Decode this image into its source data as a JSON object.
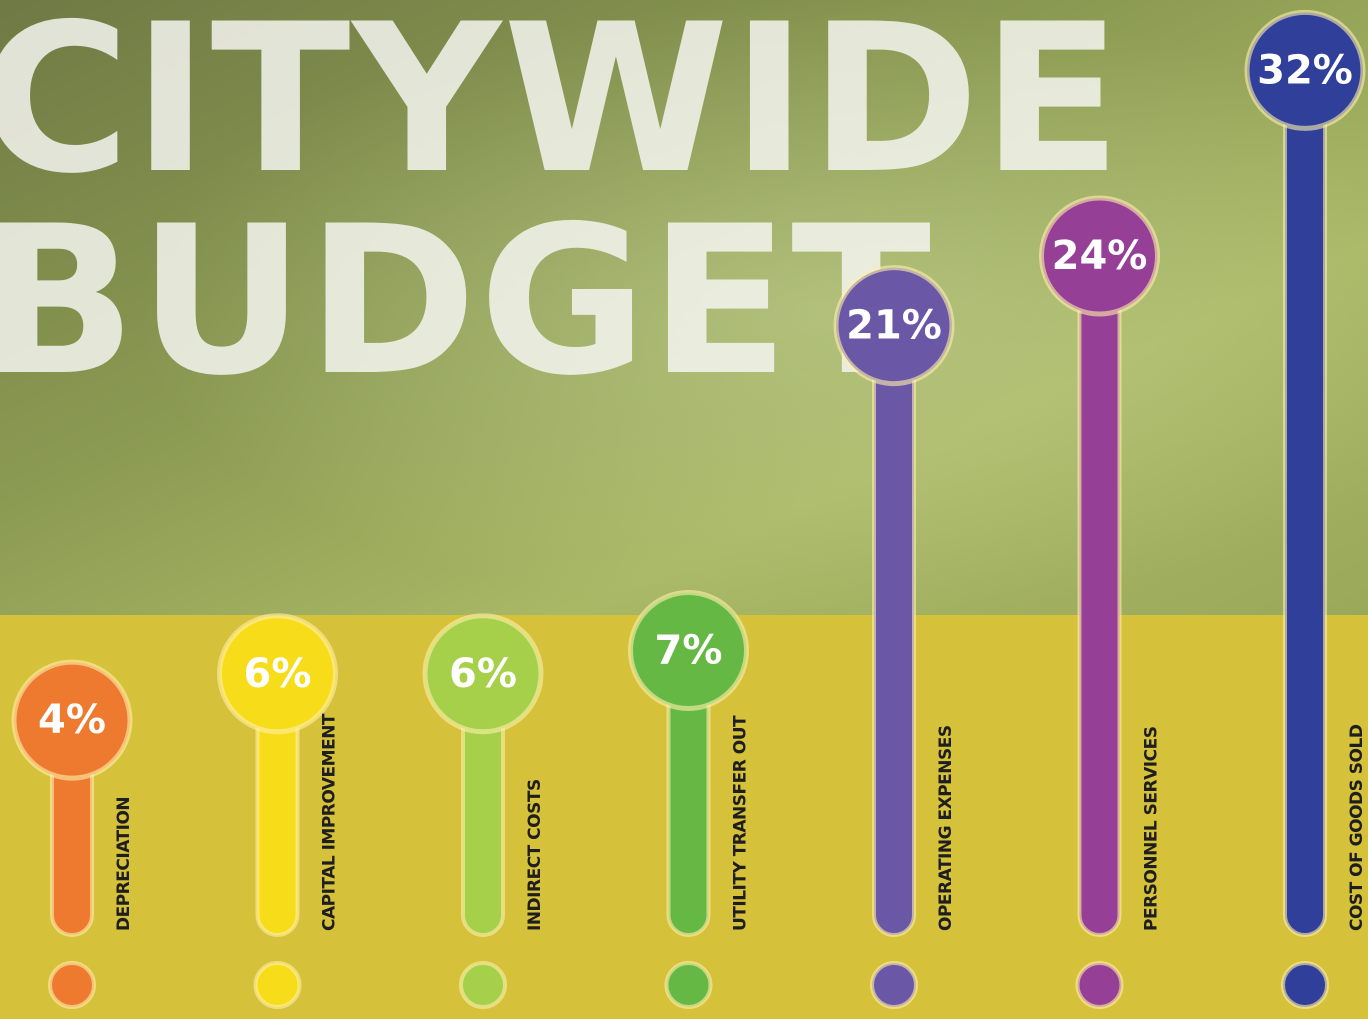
{
  "chart_data": {
    "type": "lollipop",
    "title": [
      "CITYWIDE",
      "BUDGET"
    ],
    "categories": [
      "DEPRECIATION",
      "CAPITAL IMPROVEMENT",
      "INDIRECT COSTS",
      "UTILITY TRANSFER OUT",
      "OPERATING EXPENSES",
      "PERSONNEL SERVICES",
      "COST OF GOODS SOLD"
    ],
    "values": [
      4,
      6,
      6,
      7,
      21,
      24,
      32
    ],
    "value_labels": [
      "4%",
      "6%",
      "6%",
      "7%",
      "21%",
      "24%",
      "32%"
    ],
    "colors": [
      "#ee7a30",
      "#f7dc1a",
      "#a6cf4a",
      "#66b845",
      "#6a57a6",
      "#963f97",
      "#2f3f9a"
    ],
    "ylim": [
      0,
      34
    ]
  }
}
